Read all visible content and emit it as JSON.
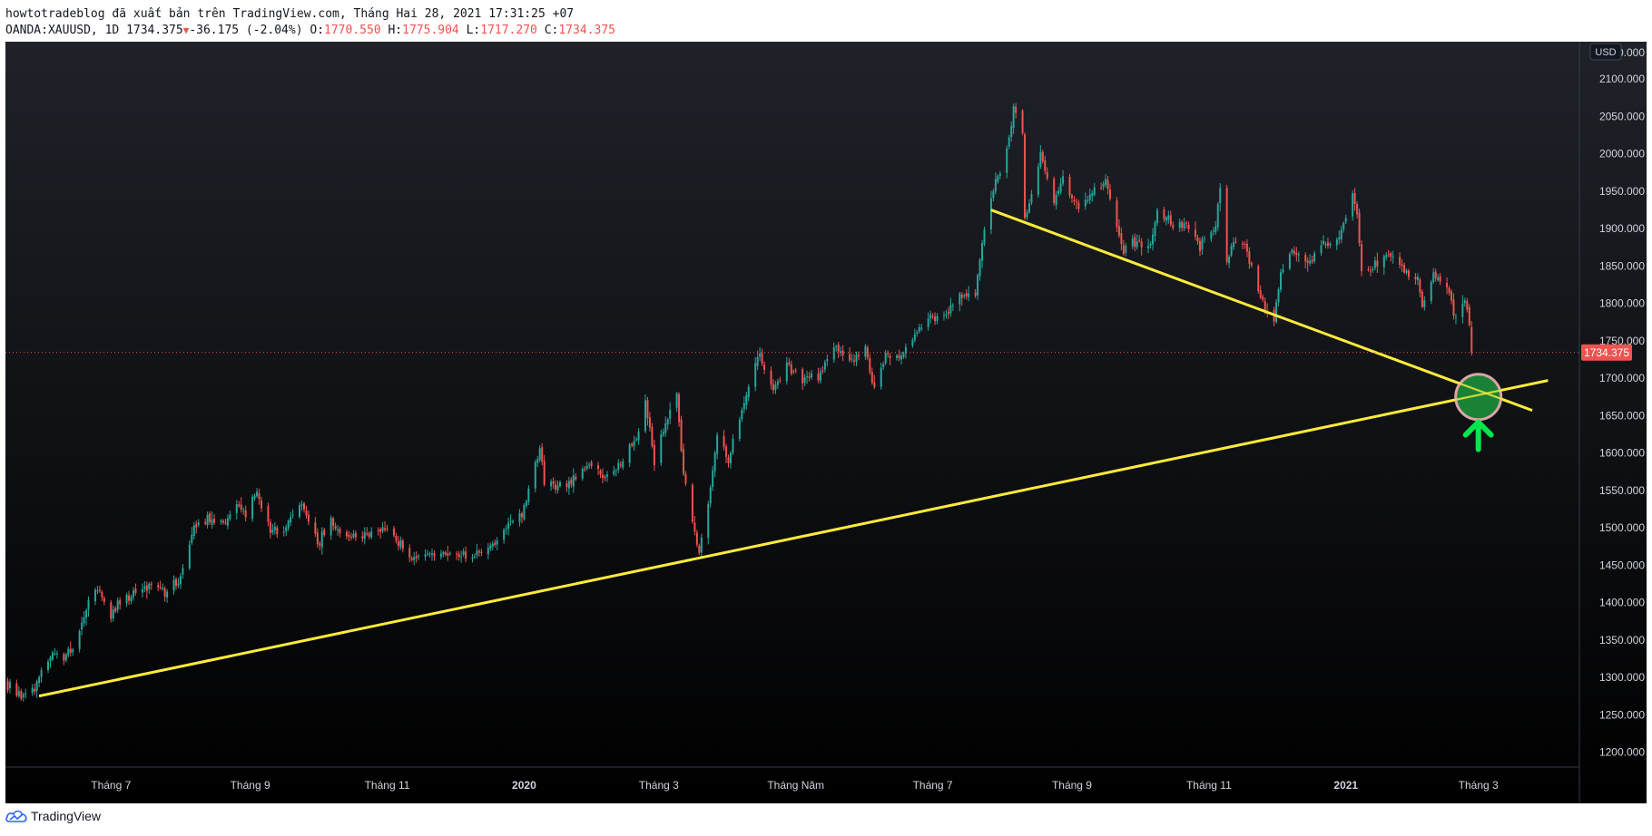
{
  "header": {
    "publish_line": "howtotradeblog đã xuất bản trên TradingView.com, Tháng Hai 28, 2021 17:31:25 +07",
    "symbol": "OANDA:XAUUSD, 1D",
    "last": "1734.375",
    "change": "-36.175 (-2.04%)",
    "open_label": "O:",
    "open": "1770.550",
    "high_label": "H:",
    "high": "1775.904",
    "low_label": "L:",
    "low": "1717.270",
    "close_label": "C:",
    "close": "1734.375"
  },
  "footer": {
    "brand": "TradingView"
  },
  "colors": {
    "background_top": "#1f2229",
    "background_bottom": "#000000",
    "up": "#26a69a",
    "down": "#ef5350",
    "trendline": "#ffeb3b",
    "marker_fill": "#1b8f3a",
    "arrow": "#00e64d",
    "axis_text": "#d1d4dc",
    "price_line": "#ef5350"
  },
  "chart_data": {
    "type": "candlestick",
    "symbol": "OANDA:XAUUSD",
    "interval": "1D",
    "currency": "USD",
    "ylim": [
      1180,
      2150
    ],
    "y_ticks": [
      1200,
      1250,
      1300,
      1350,
      1400,
      1450,
      1500,
      1550,
      1600,
      1650,
      1700,
      1750,
      1800,
      1850,
      1900,
      1950,
      2000,
      2050,
      2100
    ],
    "y_tick_labels": [
      "1200.000",
      "1250.000",
      "1300.000",
      "1350.000",
      "1400.000",
      "1450.000",
      "1500.000",
      "1550.000",
      "1600.000",
      "1650.000",
      "1700.000",
      "1750.000",
      "1800.000",
      "1850.000",
      "1900.000",
      "1950.000",
      "2000.000",
      "2050.000",
      "2100.000"
    ],
    "top_tick_label": "2150.000",
    "x_range": [
      "2019-05-15",
      "2021-04-15"
    ],
    "x_ticks": [
      {
        "date": "2019-07-01",
        "label": "Tháng 7",
        "bold": false
      },
      {
        "date": "2019-09-01",
        "label": "Tháng 9",
        "bold": false
      },
      {
        "date": "2019-11-01",
        "label": "Tháng 11",
        "bold": false
      },
      {
        "date": "2020-01-01",
        "label": "2020",
        "bold": true
      },
      {
        "date": "2020-03-01",
        "label": "Tháng 3",
        "bold": false
      },
      {
        "date": "2020-05-01",
        "label": "Tháng Năm",
        "bold": false
      },
      {
        "date": "2020-07-01",
        "label": "Tháng 7",
        "bold": false
      },
      {
        "date": "2020-09-01",
        "label": "Tháng 9",
        "bold": false
      },
      {
        "date": "2020-11-01",
        "label": "Tháng 11",
        "bold": false
      },
      {
        "date": "2021-01-01",
        "label": "2021",
        "bold": true
      },
      {
        "date": "2021-03-01",
        "label": "Tháng 3",
        "bold": false
      }
    ],
    "price_marker": {
      "value": 1734.375,
      "label": "1734.375"
    },
    "currency_badge": "USD",
    "close_path": [
      [
        "2019-05-15",
        1296
      ],
      [
        "2019-05-20",
        1277
      ],
      [
        "2019-05-28",
        1282
      ],
      [
        "2019-05-31",
        1305
      ],
      [
        "2019-06-05",
        1333
      ],
      [
        "2019-06-10",
        1328
      ],
      [
        "2019-06-14",
        1342
      ],
      [
        "2019-06-20",
        1390
      ],
      [
        "2019-06-25",
        1420
      ],
      [
        "2019-07-01",
        1385
      ],
      [
        "2019-07-05",
        1400
      ],
      [
        "2019-07-12",
        1415
      ],
      [
        "2019-07-19",
        1420
      ],
      [
        "2019-07-25",
        1415
      ],
      [
        "2019-08-01",
        1435
      ],
      [
        "2019-08-07",
        1500
      ],
      [
        "2019-08-13",
        1510
      ],
      [
        "2019-08-20",
        1505
      ],
      [
        "2019-08-26",
        1530
      ],
      [
        "2019-08-30",
        1520
      ],
      [
        "2019-09-04",
        1550
      ],
      [
        "2019-09-10",
        1495
      ],
      [
        "2019-09-16",
        1500
      ],
      [
        "2019-09-24",
        1535
      ],
      [
        "2019-10-01",
        1480
      ],
      [
        "2019-10-07",
        1505
      ],
      [
        "2019-10-15",
        1485
      ],
      [
        "2019-10-22",
        1490
      ],
      [
        "2019-10-30",
        1500
      ],
      [
        "2019-11-05",
        1485
      ],
      [
        "2019-11-12",
        1460
      ],
      [
        "2019-11-20",
        1468
      ],
      [
        "2019-11-29",
        1460
      ],
      [
        "2019-12-06",
        1462
      ],
      [
        "2019-12-16",
        1475
      ],
      [
        "2019-12-24",
        1500
      ],
      [
        "2019-12-31",
        1517
      ],
      [
        "2020-01-03",
        1550
      ],
      [
        "2020-01-08",
        1610
      ],
      [
        "2020-01-10",
        1560
      ],
      [
        "2020-01-17",
        1555
      ],
      [
        "2020-01-24",
        1565
      ],
      [
        "2020-01-31",
        1585
      ],
      [
        "2020-02-06",
        1565
      ],
      [
        "2020-02-14",
        1585
      ],
      [
        "2020-02-20",
        1620
      ],
      [
        "2020-02-24",
        1670
      ],
      [
        "2020-02-28",
        1585
      ],
      [
        "2020-03-04",
        1640
      ],
      [
        "2020-03-09",
        1675
      ],
      [
        "2020-03-12",
        1575
      ],
      [
        "2020-03-16",
        1510
      ],
      [
        "2020-03-19",
        1470
      ],
      [
        "2020-03-24",
        1555
      ],
      [
        "2020-03-27",
        1625
      ],
      [
        "2020-04-01",
        1590
      ],
      [
        "2020-04-06",
        1650
      ],
      [
        "2020-04-10",
        1685
      ],
      [
        "2020-04-14",
        1735
      ],
      [
        "2020-04-21",
        1685
      ],
      [
        "2020-04-27",
        1715
      ],
      [
        "2020-05-04",
        1700
      ],
      [
        "2020-05-11",
        1700
      ],
      [
        "2020-05-18",
        1745
      ],
      [
        "2020-05-25",
        1720
      ],
      [
        "2020-06-01",
        1740
      ],
      [
        "2020-06-05",
        1685
      ],
      [
        "2020-06-10",
        1735
      ],
      [
        "2020-06-16",
        1725
      ],
      [
        "2020-06-24",
        1765
      ],
      [
        "2020-06-30",
        1780
      ],
      [
        "2020-07-06",
        1785
      ],
      [
        "2020-07-14",
        1810
      ],
      [
        "2020-07-20",
        1815
      ],
      [
        "2020-07-24",
        1900
      ],
      [
        "2020-07-28",
        1955
      ],
      [
        "2020-07-31",
        1975
      ],
      [
        "2020-08-04",
        2020
      ],
      [
        "2020-08-06",
        2065
      ],
      [
        "2020-08-10",
        2030
      ],
      [
        "2020-08-11",
        1912
      ],
      [
        "2020-08-14",
        1945
      ],
      [
        "2020-08-18",
        2005
      ],
      [
        "2020-08-24",
        1930
      ],
      [
        "2020-08-28",
        1965
      ],
      [
        "2020-09-03",
        1930
      ],
      [
        "2020-09-10",
        1945
      ],
      [
        "2020-09-16",
        1960
      ],
      [
        "2020-09-21",
        1905
      ],
      [
        "2020-09-24",
        1865
      ],
      [
        "2020-09-30",
        1885
      ],
      [
        "2020-10-06",
        1875
      ],
      [
        "2020-10-09",
        1930
      ],
      [
        "2020-10-15",
        1905
      ],
      [
        "2020-10-22",
        1905
      ],
      [
        "2020-10-28",
        1875
      ],
      [
        "2020-11-04",
        1905
      ],
      [
        "2020-11-06",
        1950
      ],
      [
        "2020-11-09",
        1855
      ],
      [
        "2020-11-13",
        1885
      ],
      [
        "2020-11-18",
        1870
      ],
      [
        "2020-11-24",
        1805
      ],
      [
        "2020-11-30",
        1775
      ],
      [
        "2020-12-03",
        1840
      ],
      [
        "2020-12-08",
        1870
      ],
      [
        "2020-12-15",
        1855
      ],
      [
        "2020-12-21",
        1880
      ],
      [
        "2020-12-28",
        1880
      ],
      [
        "2021-01-04",
        1945
      ],
      [
        "2021-01-06",
        1915
      ],
      [
        "2021-01-08",
        1850
      ],
      [
        "2021-01-13",
        1845
      ],
      [
        "2021-01-20",
        1870
      ],
      [
        "2021-01-27",
        1845
      ],
      [
        "2021-02-02",
        1835
      ],
      [
        "2021-02-04",
        1795
      ],
      [
        "2021-02-09",
        1840
      ],
      [
        "2021-02-15",
        1820
      ],
      [
        "2021-02-19",
        1780
      ],
      [
        "2021-02-23",
        1810
      ],
      [
        "2021-02-25",
        1770
      ],
      [
        "2021-02-26",
        1734.375
      ]
    ],
    "annotations": {
      "support_line": {
        "from": [
          "2019-05-30",
          1275
        ],
        "to": [
          "2021-04-01",
          1697
        ]
      },
      "resistance_line": {
        "from": [
          "2020-07-27",
          1925
        ],
        "to": [
          "2021-03-25",
          1657
        ]
      },
      "circle_marker": {
        "center": [
          "2021-03-01",
          1675
        ]
      },
      "arrow_marker": {
        "direction": "up",
        "at": [
          "2021-03-01",
          1600
        ]
      }
    }
  }
}
